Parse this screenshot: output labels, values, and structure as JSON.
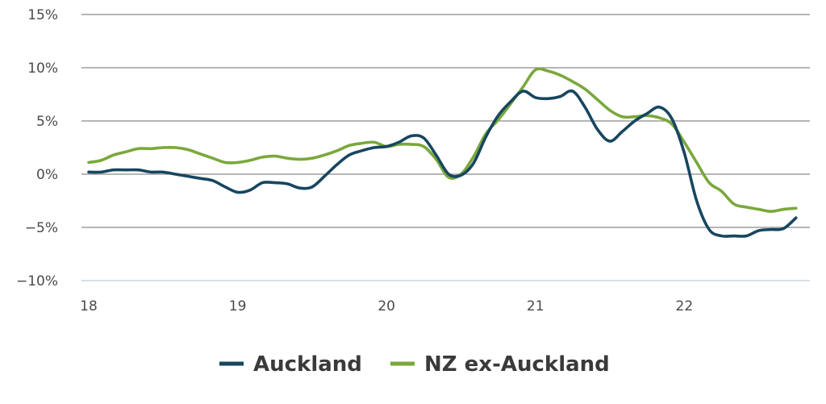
{
  "chart_data": {
    "type": "line",
    "title": "",
    "xlabel": "",
    "ylabel": "",
    "xlim": [
      18,
      22.8
    ],
    "ylim": [
      -10,
      15
    ],
    "grid": true,
    "legend_position": "bottom-center",
    "x_ticks": [
      {
        "value": 18,
        "label": "18"
      },
      {
        "value": 19,
        "label": "19"
      },
      {
        "value": 20,
        "label": "20"
      },
      {
        "value": 21,
        "label": "21"
      },
      {
        "value": 22,
        "label": "22"
      }
    ],
    "y_ticks": [
      {
        "value": 15,
        "label": "15%"
      },
      {
        "value": 10,
        "label": "10%"
      },
      {
        "value": 5,
        "label": "5%"
      },
      {
        "value": 0,
        "label": "0%"
      },
      {
        "value": -5,
        "label": "−5%"
      },
      {
        "value": -10,
        "label": "−10%"
      }
    ],
    "series": [
      {
        "name": "Auckland",
        "color": "#17465f",
        "points": [
          [
            18.0,
            0.2
          ],
          [
            18.083,
            0.2
          ],
          [
            18.167,
            0.4
          ],
          [
            18.25,
            0.4
          ],
          [
            18.333,
            0.4
          ],
          [
            18.417,
            0.2
          ],
          [
            18.5,
            0.2
          ],
          [
            18.583,
            0.0
          ],
          [
            18.667,
            -0.2
          ],
          [
            18.75,
            -0.4
          ],
          [
            18.833,
            -0.6
          ],
          [
            18.917,
            -1.2
          ],
          [
            19.0,
            -1.7
          ],
          [
            19.083,
            -1.5
          ],
          [
            19.167,
            -0.8
          ],
          [
            19.25,
            -0.8
          ],
          [
            19.333,
            -0.9
          ],
          [
            19.417,
            -1.3
          ],
          [
            19.5,
            -1.2
          ],
          [
            19.583,
            -0.2
          ],
          [
            19.667,
            0.9
          ],
          [
            19.75,
            1.8
          ],
          [
            19.833,
            2.2
          ],
          [
            19.917,
            2.5
          ],
          [
            20.0,
            2.6
          ],
          [
            20.083,
            3.0
          ],
          [
            20.167,
            3.6
          ],
          [
            20.25,
            3.4
          ],
          [
            20.333,
            1.8
          ],
          [
            20.417,
            0.0
          ],
          [
            20.5,
            -0.1
          ],
          [
            20.583,
            1.0
          ],
          [
            20.667,
            3.5
          ],
          [
            20.75,
            5.5
          ],
          [
            20.833,
            6.8
          ],
          [
            20.917,
            7.8
          ],
          [
            21.0,
            7.2
          ],
          [
            21.083,
            7.1
          ],
          [
            21.167,
            7.3
          ],
          [
            21.25,
            7.8
          ],
          [
            21.333,
            6.3
          ],
          [
            21.417,
            4.2
          ],
          [
            21.5,
            3.1
          ],
          [
            21.583,
            4.0
          ],
          [
            21.667,
            5.0
          ],
          [
            21.75,
            5.7
          ],
          [
            21.833,
            6.3
          ],
          [
            21.917,
            5.2
          ],
          [
            22.0,
            2.0
          ],
          [
            22.083,
            -2.5
          ],
          [
            22.167,
            -5.2
          ],
          [
            22.25,
            -5.8
          ],
          [
            22.333,
            -5.8
          ],
          [
            22.417,
            -5.8
          ],
          [
            22.5,
            -5.3
          ],
          [
            22.583,
            -5.2
          ],
          [
            22.667,
            -5.1
          ],
          [
            22.75,
            -4.1
          ]
        ]
      },
      {
        "name": "NZ ex-Auckland",
        "color": "#7aa83c",
        "points": [
          [
            18.0,
            1.1
          ],
          [
            18.083,
            1.3
          ],
          [
            18.167,
            1.8
          ],
          [
            18.25,
            2.1
          ],
          [
            18.333,
            2.4
          ],
          [
            18.417,
            2.4
          ],
          [
            18.5,
            2.5
          ],
          [
            18.583,
            2.5
          ],
          [
            18.667,
            2.3
          ],
          [
            18.75,
            1.9
          ],
          [
            18.833,
            1.5
          ],
          [
            18.917,
            1.1
          ],
          [
            19.0,
            1.1
          ],
          [
            19.083,
            1.3
          ],
          [
            19.167,
            1.6
          ],
          [
            19.25,
            1.7
          ],
          [
            19.333,
            1.5
          ],
          [
            19.417,
            1.4
          ],
          [
            19.5,
            1.5
          ],
          [
            19.583,
            1.8
          ],
          [
            19.667,
            2.2
          ],
          [
            19.75,
            2.7
          ],
          [
            19.833,
            2.9
          ],
          [
            19.917,
            3.0
          ],
          [
            20.0,
            2.6
          ],
          [
            20.083,
            2.8
          ],
          [
            20.167,
            2.8
          ],
          [
            20.25,
            2.6
          ],
          [
            20.333,
            1.4
          ],
          [
            20.417,
            -0.3
          ],
          [
            20.5,
            0.0
          ],
          [
            20.583,
            1.6
          ],
          [
            20.667,
            3.8
          ],
          [
            20.75,
            5.1
          ],
          [
            20.833,
            6.6
          ],
          [
            20.917,
            8.2
          ],
          [
            21.0,
            9.8
          ],
          [
            21.083,
            9.7
          ],
          [
            21.167,
            9.3
          ],
          [
            21.25,
            8.7
          ],
          [
            21.333,
            8.0
          ],
          [
            21.417,
            7.0
          ],
          [
            21.5,
            6.0
          ],
          [
            21.583,
            5.4
          ],
          [
            21.667,
            5.4
          ],
          [
            21.75,
            5.5
          ],
          [
            21.833,
            5.3
          ],
          [
            21.917,
            4.7
          ],
          [
            22.0,
            3.0
          ],
          [
            22.083,
            1.1
          ],
          [
            22.167,
            -0.8
          ],
          [
            22.25,
            -1.6
          ],
          [
            22.333,
            -2.8
          ],
          [
            22.417,
            -3.1
          ],
          [
            22.5,
            -3.3
          ],
          [
            22.583,
            -3.5
          ],
          [
            22.667,
            -3.3
          ],
          [
            22.75,
            -3.2
          ]
        ]
      }
    ]
  }
}
